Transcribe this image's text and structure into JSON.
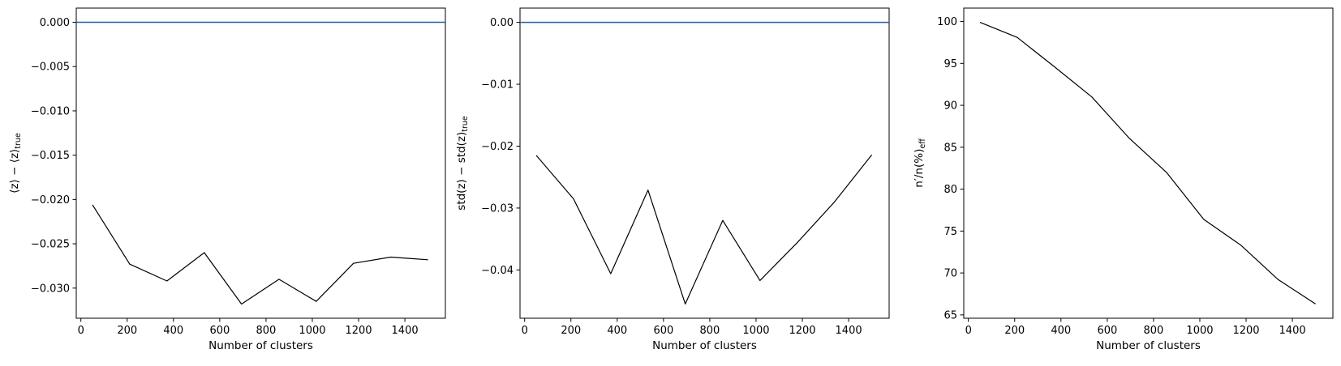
{
  "chart_data": [
    {
      "type": "line",
      "xlabel": "Number of clusters",
      "ylabel": "⟨z⟩ − ⟨z⟩",
      "ylabel_sub": "true",
      "xlim": [
        -20,
        1575
      ],
      "ylim": [
        -0.0334,
        0.0016
      ],
      "xticks": [
        0,
        200,
        400,
        600,
        800,
        1000,
        1200,
        1400
      ],
      "xtick_labels": [
        "0",
        "200",
        "400",
        "600",
        "800",
        "1000",
        "1200",
        "1400"
      ],
      "yticks": [
        0.0,
        -0.005,
        -0.01,
        -0.015,
        -0.02,
        -0.025,
        -0.03
      ],
      "ytick_labels": [
        "0.000",
        "−0.005",
        "−0.010",
        "−0.015",
        "−0.020",
        "−0.025",
        "−0.030"
      ],
      "hline": {
        "y": 0.0,
        "color": "#1f5fa0"
      },
      "series": [
        {
          "color": "#000000",
          "x": [
            50,
            211,
            372,
            533,
            694,
            856,
            1017,
            1178,
            1339,
            1500
          ],
          "y": [
            -0.0206,
            -0.0273,
            -0.0292,
            -0.026,
            -0.0318,
            -0.029,
            -0.0315,
            -0.0272,
            -0.0265,
            -0.0268
          ]
        }
      ]
    },
    {
      "type": "line",
      "xlabel": "Number of clusters",
      "ylabel": "std(z) − std(z)",
      "ylabel_sub": "true",
      "xlim": [
        -20,
        1575
      ],
      "ylim": [
        -0.0478,
        0.0023
      ],
      "xticks": [
        0,
        200,
        400,
        600,
        800,
        1000,
        1200,
        1400
      ],
      "xtick_labels": [
        "0",
        "200",
        "400",
        "600",
        "800",
        "1000",
        "1200",
        "1400"
      ],
      "yticks": [
        0.0,
        -0.01,
        -0.02,
        -0.03,
        -0.04
      ],
      "ytick_labels": [
        "0.00",
        "−0.01",
        "−0.02",
        "−0.03",
        "−0.04"
      ],
      "hline": {
        "y": 0.0,
        "color": "#1f5fa0"
      },
      "series": [
        {
          "color": "#000000",
          "x": [
            50,
            211,
            372,
            533,
            694,
            856,
            1017,
            1178,
            1339,
            1500
          ],
          "y": [
            -0.0215,
            -0.0285,
            -0.0406,
            -0.0271,
            -0.0455,
            -0.032,
            -0.0417,
            -0.0356,
            -0.029,
            -0.0214
          ]
        }
      ]
    },
    {
      "type": "line",
      "xlabel": "Number of clusters",
      "ylabel": "n′/n(%)",
      "ylabel_sub": "eff",
      "xlim": [
        -20,
        1575
      ],
      "ylim": [
        64.6,
        101.6
      ],
      "xticks": [
        0,
        200,
        400,
        600,
        800,
        1000,
        1200,
        1400
      ],
      "xtick_labels": [
        "0",
        "200",
        "400",
        "600",
        "800",
        "1000",
        "1200",
        "1400"
      ],
      "yticks": [
        65,
        70,
        75,
        80,
        85,
        90,
        95,
        100
      ],
      "ytick_labels": [
        "65",
        "70",
        "75",
        "80",
        "85",
        "90",
        "95",
        "100"
      ],
      "series": [
        {
          "color": "#000000",
          "x": [
            50,
            211,
            372,
            533,
            694,
            856,
            1017,
            1178,
            1339,
            1500
          ],
          "y": [
            99.9,
            98.1,
            94.6,
            91.0,
            86.1,
            82.0,
            76.4,
            73.3,
            69.2,
            66.3
          ]
        }
      ]
    }
  ]
}
